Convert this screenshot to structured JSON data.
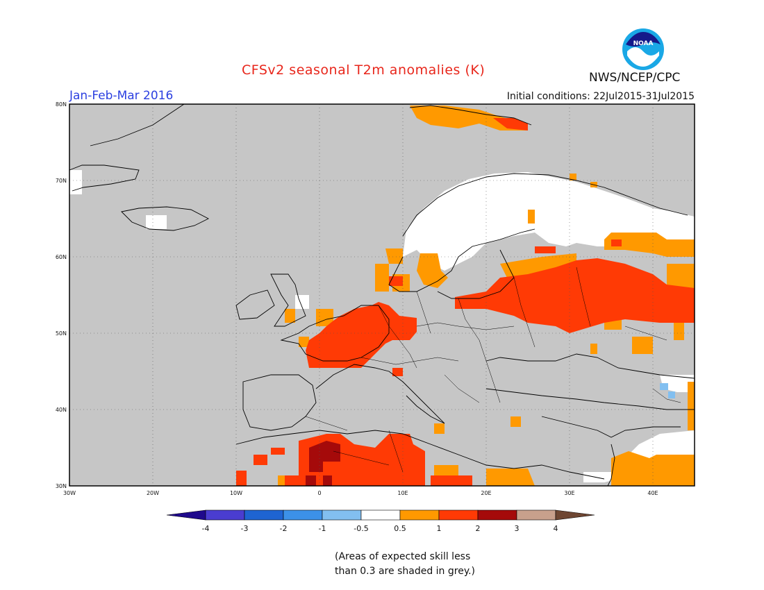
{
  "header": {
    "title": "CFSv2 seasonal T2m anomalies (K)",
    "period": "Jan-Feb-Mar 2016",
    "initial_conditions": "Initial conditions: 22Jul2015-31Jul2015",
    "agency": "NWS/NCEP/CPC",
    "logo_text": "NOAA"
  },
  "map": {
    "lon_range": [
      -30,
      45
    ],
    "lat_range": [
      30,
      80
    ],
    "lat_labels": [
      "30N",
      "40N",
      "50N",
      "60N",
      "70N",
      "80N"
    ],
    "lon_labels": [
      "30W",
      "20W",
      "10W",
      "0",
      "10E",
      "20E",
      "30E",
      "40E"
    ],
    "background": "#c6c6c6"
  },
  "colorbar": {
    "ticks": [
      "-4",
      "-3",
      "-2",
      "-1",
      "-0.5",
      "0.5",
      "1",
      "2",
      "3",
      "4"
    ],
    "colors": [
      "#1f0a8c",
      "#4a3dd0",
      "#1e64d2",
      "#3c91e8",
      "#82bff0",
      "#ffffff",
      "#ff9900",
      "#ff3a05",
      "#a50a0a",
      "#c8a08c",
      "#6e4632"
    ]
  },
  "note": {
    "line1": "(Areas of expected skill less",
    "line2": "than 0.3 are shaded in grey.)"
  }
}
